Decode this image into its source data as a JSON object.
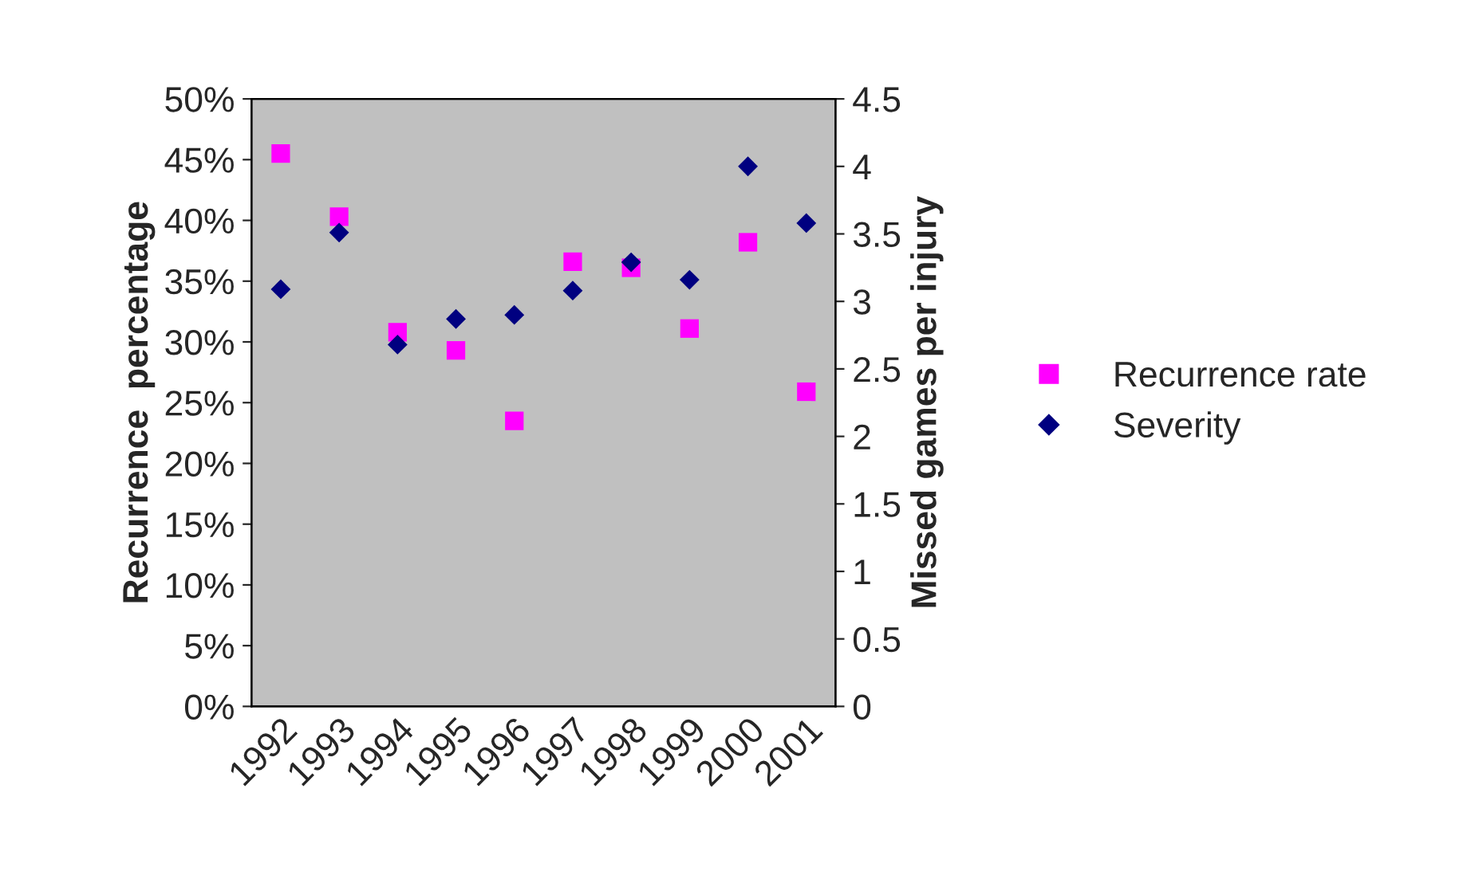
{
  "chart_data": {
    "type": "scatter",
    "ylabel": "Recurrence  percentage",
    "y2label": "Missed games per injury",
    "categories": [
      "1992",
      "1993",
      "1994",
      "1995",
      "1996",
      "1997",
      "1998",
      "1999",
      "2000",
      "2001"
    ],
    "series": [
      {
        "name": "Recurrence rate",
        "color": "#ff00ff",
        "marker": "square",
        "values": [
          45.5,
          40.3,
          30.8,
          29.3,
          23.5,
          36.6,
          36.1,
          31.1,
          38.2,
          25.9
        ]
      },
      {
        "name": "Severity",
        "color": "#000080",
        "marker": "diamond",
        "axis": "y2",
        "values": [
          3.09,
          3.51,
          2.68,
          2.87,
          2.9,
          3.08,
          3.29,
          3.16,
          4.0,
          3.58
        ]
      }
    ],
    "ylim": [
      0,
      50
    ],
    "yticks": [
      {
        "value": 0,
        "label": "0%"
      },
      {
        "value": 5,
        "label": "5%"
      },
      {
        "value": 10,
        "label": "10%"
      },
      {
        "value": 15,
        "label": "15%"
      },
      {
        "value": 20,
        "label": "20%"
      },
      {
        "value": 25,
        "label": "25%"
      },
      {
        "value": 30,
        "label": "30%"
      },
      {
        "value": 35,
        "label": "35%"
      },
      {
        "value": 40,
        "label": "40%"
      },
      {
        "value": 45,
        "label": "45%"
      },
      {
        "value": 50,
        "label": "50%"
      }
    ],
    "y2lim": [
      0,
      4.5
    ],
    "y2ticks": [
      0,
      0.5,
      1,
      1.5,
      2,
      2.5,
      3,
      3.5,
      4,
      4.5
    ],
    "grid": false,
    "legend": "right"
  }
}
